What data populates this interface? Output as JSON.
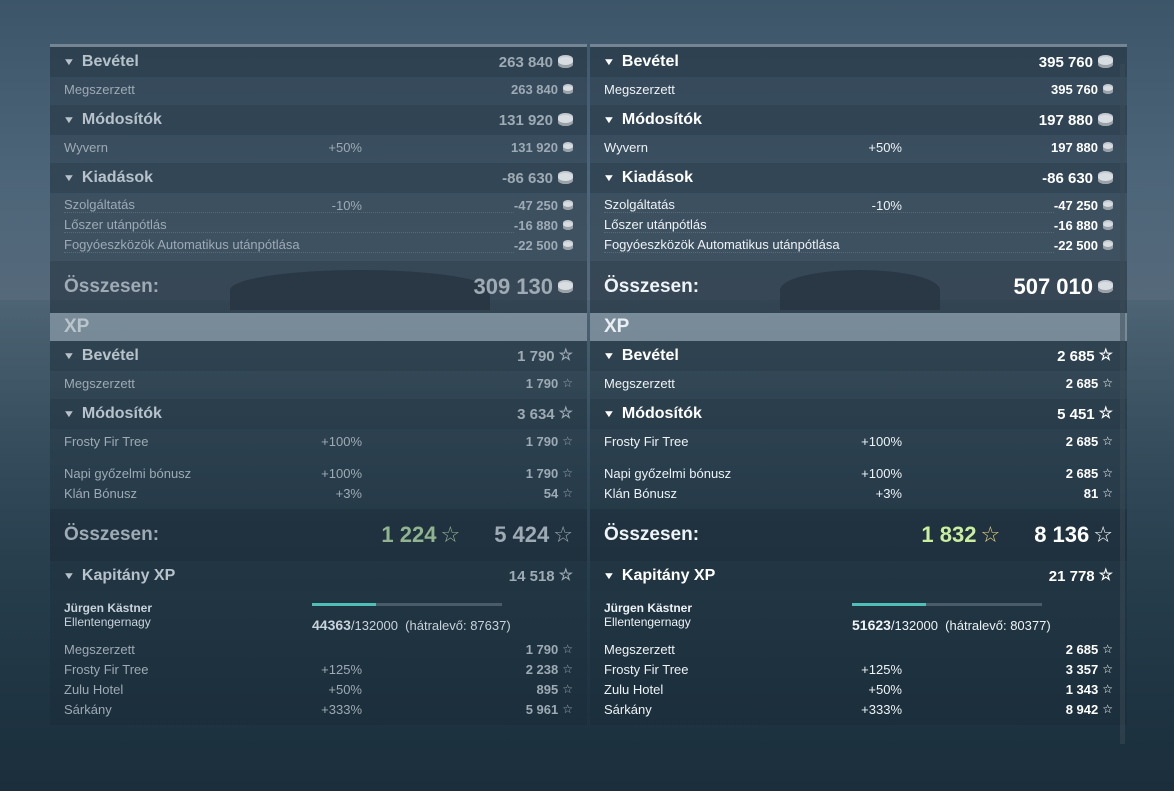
{
  "left": {
    "revenue": {
      "title": "Bevétel",
      "total": "263 840",
      "rows": [
        {
          "label": "Megszerzett",
          "value": "263 840"
        }
      ]
    },
    "modifiers": {
      "title": "Módosítók",
      "total": "131 920",
      "rows": [
        {
          "label": "Wyvern",
          "pct": "+50%",
          "value": "131 920"
        }
      ]
    },
    "expenses": {
      "title": "Kiadások",
      "total": "-86 630",
      "rows": [
        {
          "label": "Szolgáltatás",
          "pct": "-10%",
          "value": "-47 250"
        },
        {
          "label": "Lőszer utánpótlás",
          "pct": "",
          "value": "-16 880"
        },
        {
          "label": "Fogyóeszközök Automatikus utánpótlása",
          "pct": "",
          "value": "-22 500"
        }
      ]
    },
    "credits_total": {
      "label": "Összesen:",
      "value": "309 130"
    },
    "xp_header": "XP",
    "xp_revenue": {
      "title": "Bevétel",
      "total": "1 790",
      "rows": [
        {
          "label": "Megszerzett",
          "value": "1 790"
        }
      ]
    },
    "xp_modifiers": {
      "title": "Módosítók",
      "total": "3 634",
      "rows": [
        {
          "label": "Frosty Fir Tree",
          "pct": "+100%",
          "value": "1 790"
        },
        {
          "label": "Napi győzelmi bónusz",
          "pct": "+100%",
          "value": "1 790"
        },
        {
          "label": "Klán Bónusz",
          "pct": "+3%",
          "value": "54"
        }
      ]
    },
    "xp_total": {
      "label": "Összesen:",
      "value_free": "1 224",
      "value": "5 424"
    },
    "captain": {
      "title": "Kapitány XP",
      "total": "14 518",
      "name": "Jürgen Kästner",
      "rank": "Ellentengernagy",
      "progress_current": "44363",
      "progress_max": "/132000",
      "remaining": "(hátralevő: 87637)",
      "progress_fraction": 0.336,
      "rows": [
        {
          "label": "Megszerzett",
          "pct": "",
          "value": "1 790"
        },
        {
          "label": "Frosty Fir Tree",
          "pct": "+125%",
          "value": "2 238"
        },
        {
          "label": "Zulu Hotel",
          "pct": "+50%",
          "value": "895"
        },
        {
          "label": "Sárkány",
          "pct": "+333%",
          "value": "5 961"
        }
      ]
    }
  },
  "right": {
    "revenue": {
      "title": "Bevétel",
      "total": "395 760",
      "rows": [
        {
          "label": "Megszerzett",
          "value": "395 760"
        }
      ]
    },
    "modifiers": {
      "title": "Módosítók",
      "total": "197 880",
      "rows": [
        {
          "label": "Wyvern",
          "pct": "+50%",
          "value": "197 880"
        }
      ]
    },
    "expenses": {
      "title": "Kiadások",
      "total": "-86 630",
      "rows": [
        {
          "label": "Szolgáltatás",
          "pct": "-10%",
          "value": "-47 250"
        },
        {
          "label": "Lőszer utánpótlás",
          "pct": "",
          "value": "-16 880"
        },
        {
          "label": "Fogyóeszközök Automatikus utánpótlása",
          "pct": "",
          "value": "-22 500"
        }
      ]
    },
    "credits_total": {
      "label": "Összesen:",
      "value": "507 010"
    },
    "xp_header": "XP",
    "xp_revenue": {
      "title": "Bevétel",
      "total": "2 685",
      "rows": [
        {
          "label": "Megszerzett",
          "value": "2 685"
        }
      ]
    },
    "xp_modifiers": {
      "title": "Módosítók",
      "total": "5 451",
      "rows": [
        {
          "label": "Frosty Fir Tree",
          "pct": "+100%",
          "value": "2 685"
        },
        {
          "label": "Napi győzelmi bónusz",
          "pct": "+100%",
          "value": "2 685"
        },
        {
          "label": "Klán Bónusz",
          "pct": "+3%",
          "value": "81"
        }
      ]
    },
    "xp_total": {
      "label": "Összesen:",
      "value_free": "1 832",
      "value": "8 136"
    },
    "captain": {
      "title": "Kapitány XP",
      "total": "21 778",
      "name": "Jürgen Kästner",
      "rank": "Ellentengernagy",
      "progress_current": "51623",
      "progress_max": "/132000",
      "remaining": "(hátralevő: 80377)",
      "progress_fraction": 0.391,
      "rows": [
        {
          "label": "Megszerzett",
          "pct": "",
          "value": "2 685"
        },
        {
          "label": "Frosty Fir Tree",
          "pct": "+125%",
          "value": "3 357"
        },
        {
          "label": "Zulu Hotel",
          "pct": "+50%",
          "value": "1 343"
        },
        {
          "label": "Sárkány",
          "pct": "+333%",
          "value": "8 942"
        }
      ]
    }
  },
  "icons": {
    "credits": "silver-coin-icon",
    "xp": "star-icon",
    "collapse": "triangle-down-icon"
  }
}
